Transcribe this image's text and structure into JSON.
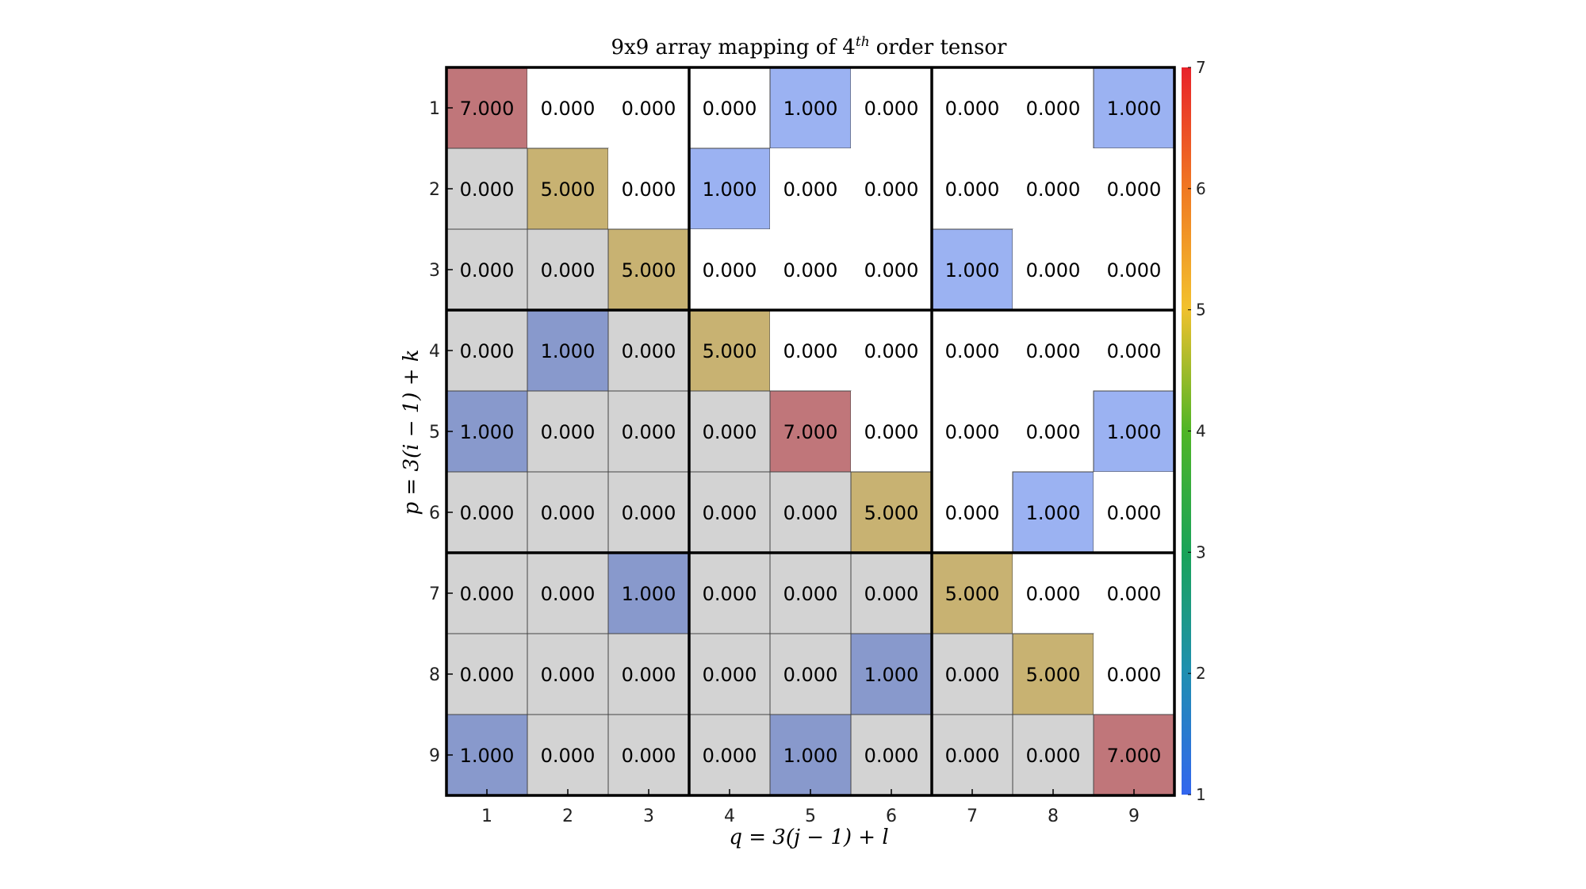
{
  "chart_data": {
    "type": "heatmap",
    "title": "9x9 array mapping of 4",
    "title_superscript": "th",
    "title_suffix": "order tensor",
    "xlabel": "q = 3(j − 1) + l",
    "ylabel": "p = 3(i − 1) + k",
    "x_ticks": [
      "1",
      "2",
      "3",
      "4",
      "5",
      "6",
      "7",
      "8",
      "9"
    ],
    "y_ticks": [
      "1",
      "2",
      "3",
      "4",
      "5",
      "6",
      "7",
      "8",
      "9"
    ],
    "values": [
      [
        7,
        0,
        0,
        0,
        1,
        0,
        0,
        0,
        1
      ],
      [
        0,
        5,
        0,
        1,
        0,
        0,
        0,
        0,
        0
      ],
      [
        0,
        0,
        5,
        0,
        0,
        0,
        1,
        0,
        0
      ],
      [
        0,
        1,
        0,
        5,
        0,
        0,
        0,
        0,
        0
      ],
      [
        1,
        0,
        0,
        0,
        7,
        0,
        0,
        0,
        1
      ],
      [
        0,
        0,
        0,
        0,
        0,
        5,
        0,
        1,
        0
      ],
      [
        0,
        0,
        1,
        0,
        0,
        0,
        5,
        0,
        0
      ],
      [
        0,
        0,
        0,
        0,
        0,
        1,
        0,
        5,
        0
      ],
      [
        1,
        0,
        0,
        0,
        1,
        0,
        0,
        0,
        7
      ]
    ],
    "value_format": "0.000",
    "colorbar": {
      "min": 1,
      "max": 7,
      "ticks": [
        "1",
        "2",
        "3",
        "4",
        "5",
        "6",
        "7"
      ],
      "colormap": "jet-like"
    },
    "block_size": 3,
    "lower_triangle_shaded": true,
    "colors": {
      "lower_triangle": "#d3d3d3",
      "value_7": "#c0767a",
      "value_5": "#c8b272",
      "value_1_upper": "#9bb2f2",
      "value_1_lower": "#8899cc",
      "zero_upper": "#ffffff",
      "grid_line": "#444444",
      "block_line": "#000000"
    }
  }
}
